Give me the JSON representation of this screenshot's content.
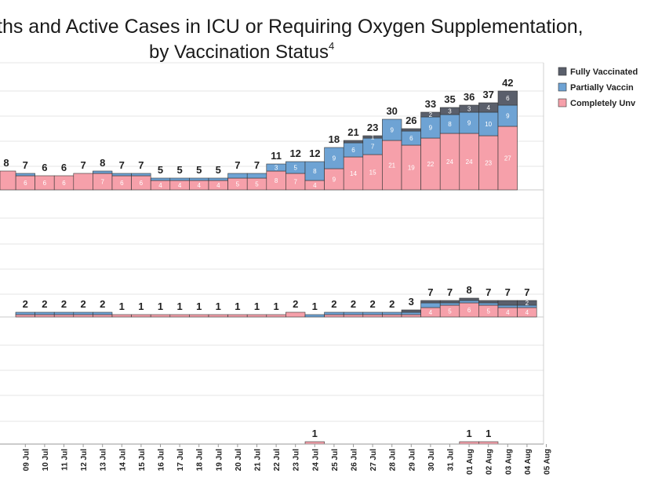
{
  "chart_data": {
    "type": "bar",
    "stacked": true,
    "title_line1": "ths and Active Cases in ICU or Requiring Oxygen Supplementation,",
    "title_line2": "by Vaccination Status",
    "title_superscript": "4",
    "legend": {
      "placement": "top-right",
      "entries": [
        {
          "label": "Fully Vaccinated",
          "color": "#5a5f6b"
        },
        {
          "label": "Partially Vaccin",
          "color": "#6ea3d4"
        },
        {
          "label": "Completely Unv",
          "color": "#f6a0aa"
        }
      ]
    },
    "categories": [
      "09 Jul",
      "10 Jul",
      "11 Jul",
      "12 Jul",
      "13 Jul",
      "14 Jul",
      "15 Jul",
      "16 Jul",
      "17 Jul",
      "18 Jul",
      "19 Jul",
      "20 Jul",
      "21 Jul",
      "22 Jul",
      "23 Jul",
      "24 Jul",
      "25 Jul",
      "26 Jul",
      "27 Jul",
      "28 Jul",
      "29 Jul",
      "30 Jul",
      "31 Jul",
      "01 Aug",
      "02 Aug",
      "03 Aug",
      "04 Aug",
      "05 Aug"
    ],
    "panels": [
      {
        "name": "top",
        "leading_total": "8",
        "totals": [
          "7",
          "6",
          "6",
          "7",
          "8",
          "7",
          "7",
          "5",
          "5",
          "5",
          "5",
          "7",
          "7",
          "11",
          "12",
          "12",
          "18",
          "21",
          "23",
          "30",
          "26",
          "33",
          "35",
          "36",
          "37",
          "42",
          ""
        ],
        "series": [
          {
            "name": "Completely Unvaccinated",
            "values": [
              6,
              6,
              6,
              7,
              7,
              6,
              6,
              4,
              4,
              4,
              4,
              5,
              5,
              8,
              7,
              4,
              9,
              14,
              15,
              21,
              19,
              22,
              24,
              24,
              23,
              27,
              null
            ],
            "labels": [
              "6",
              "6",
              "6",
              "",
              "7",
              "6",
              "6",
              "4",
              "4",
              "4",
              "4",
              "5",
              "5",
              "8",
              "7",
              "4",
              "9",
              "14",
              "15",
              "21",
              "19",
              "22",
              "24",
              "24",
              "23",
              "27",
              ""
            ]
          },
          {
            "name": "Partially Vaccinated",
            "values": [
              1,
              0,
              0,
              0,
              1,
              1,
              1,
              1,
              1,
              1,
              1,
              2,
              2,
              3,
              5,
              8,
              9,
              6,
              7,
              9,
              6,
              9,
              8,
              9,
              10,
              9,
              null
            ],
            "labels": [
              "",
              "",
              "",
              "",
              "",
              "",
              "",
              "",
              "",
              "",
              "",
              "",
              "",
              "3",
              "5",
              "8",
              "9",
              "6",
              "7",
              "9",
              "6",
              "9",
              "8",
              "9",
              "10",
              "9",
              ""
            ]
          },
          {
            "name": "Fully Vaccinated",
            "values": [
              0,
              0,
              0,
              0,
              0,
              0,
              0,
              0,
              0,
              0,
              0,
              0,
              0,
              0,
              0,
              0,
              0,
              1,
              1,
              0,
              1,
              2,
              3,
              3,
              4,
              6,
              null
            ],
            "labels": [
              "",
              "",
              "",
              "",
              "",
              "",
              "",
              "",
              "",
              "",
              "",
              "",
              "",
              "",
              "",
              "",
              "",
              "",
              "1",
              "",
              "",
              "2",
              "3",
              "3",
              "4",
              "6",
              ""
            ]
          }
        ],
        "ylim": [
          0,
          45
        ]
      },
      {
        "name": "middle",
        "totals": [
          "2",
          "2",
          "2",
          "2",
          "2",
          "1",
          "1",
          "1",
          "1",
          "1",
          "1",
          "1",
          "1",
          "1",
          "2",
          "1",
          "2",
          "2",
          "2",
          "2",
          "3",
          "7",
          "7",
          "8",
          "7",
          "7",
          "7",
          ""
        ],
        "series": [
          {
            "name": "Completely Unvaccinated",
            "values": [
              1,
              1,
              1,
              1,
              1,
              1,
              1,
              1,
              1,
              1,
              1,
              1,
              1,
              1,
              2,
              0,
              1,
              1,
              1,
              1,
              1,
              4,
              5,
              6,
              5,
              4,
              4,
              null
            ],
            "labels": [
              "",
              "",
              "",
              "",
              "",
              "",
              "",
              "",
              "",
              "",
              "",
              "",
              "",
              "",
              "",
              "",
              "",
              "",
              "",
              "",
              "",
              "4",
              "5",
              "6",
              "5",
              "4",
              "4",
              ""
            ]
          },
          {
            "name": "Partially Vaccinated",
            "values": [
              1,
              1,
              1,
              1,
              1,
              0,
              0,
              0,
              0,
              0,
              0,
              0,
              0,
              0,
              0,
              1,
              1,
              1,
              1,
              1,
              1,
              2,
              1,
              1,
              1,
              1,
              1,
              null
            ],
            "labels": [
              "",
              "",
              "",
              "",
              "",
              "",
              "",
              "",
              "",
              "",
              "",
              "",
              "",
              "",
              "",
              "",
              "",
              "",
              "",
              "",
              "",
              "",
              "",
              "",
              "",
              "",
              "",
              ""
            ]
          },
          {
            "name": "Fully Vaccinated",
            "values": [
              0,
              0,
              0,
              0,
              0,
              0,
              0,
              0,
              0,
              0,
              0,
              0,
              0,
              0,
              0,
              0,
              0,
              0,
              0,
              0,
              1,
              1,
              1,
              1,
              1,
              2,
              2,
              null
            ],
            "labels": [
              "",
              "",
              "",
              "",
              "",
              "",
              "",
              "",
              "",
              "",
              "",
              "",
              "",
              "",
              "",
              "",
              "",
              "",
              "",
              "",
              "",
              "",
              "",
              "",
              "",
              "",
              "2",
              ""
            ]
          }
        ],
        "ylim": [
          0,
          45
        ]
      },
      {
        "name": "bottom",
        "totals": [
          "",
          "",
          "",
          "",
          "",
          "",
          "",
          "",
          "",
          "",
          "",
          "",
          "",
          "",
          "",
          "1",
          "",
          "",
          "",
          "",
          "",
          "",
          "",
          "1",
          "1",
          "",
          "",
          ""
        ],
        "series": [
          {
            "name": "Completely Unvaccinated",
            "values": [
              0,
              0,
              0,
              0,
              0,
              0,
              0,
              0,
              0,
              0,
              0,
              0,
              0,
              0,
              0,
              1,
              0,
              0,
              0,
              0,
              0,
              0,
              0,
              1,
              1,
              0,
              0,
              null
            ]
          }
        ],
        "ylim": [
          0,
          45
        ]
      }
    ]
  }
}
